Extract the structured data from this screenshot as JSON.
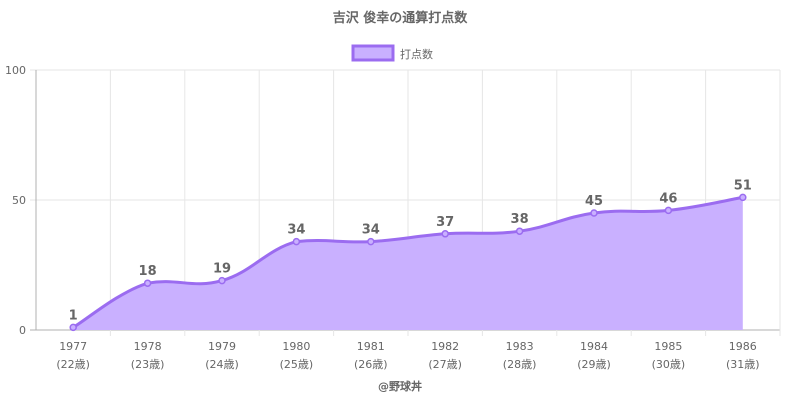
{
  "chart_data": {
    "type": "area",
    "title": "吉沢 俊幸の通算打点数",
    "legend": {
      "label": "打点数",
      "position": "top"
    },
    "categories": [
      "1977",
      "1978",
      "1979",
      "1980",
      "1981",
      "1982",
      "1983",
      "1984",
      "1985",
      "1986"
    ],
    "category_sublabels": [
      "(22歳)",
      "(23歳)",
      "(24歳)",
      "(25歳)",
      "(26歳)",
      "(27歳)",
      "(28歳)",
      "(29歳)",
      "(30歳)",
      "(31歳)"
    ],
    "series": [
      {
        "name": "打点数",
        "values": [
          1,
          18,
          19,
          34,
          34,
          37,
          38,
          45,
          46,
          51
        ]
      }
    ],
    "ylim": [
      0,
      100
    ],
    "yticks": [
      0,
      50,
      100
    ],
    "grid": true,
    "xlabel": "@野球丼",
    "ylabel": "",
    "colors": {
      "line": "#9b6cf0",
      "fill": "#c9b0ff",
      "text": "#666666",
      "grid": "#e6e6e6",
      "axis": "#b0b0b0"
    }
  }
}
